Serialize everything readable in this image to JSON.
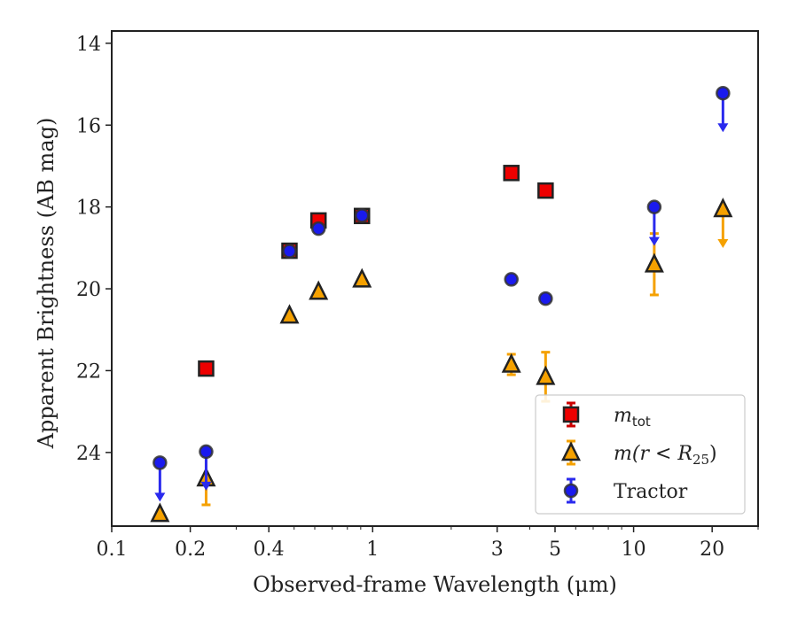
{
  "chart_data": {
    "type": "scatter",
    "xlabel": "Observed-frame Wavelength (μm)",
    "ylabel": "Apparent Brightness (AB mag)",
    "x_scale": "log",
    "xlim": [
      0.1,
      30
    ],
    "ylim": [
      25.8,
      13.7
    ],
    "y_inverted": true,
    "grid": false,
    "legend_position": "lower-right",
    "x_ticks": [
      {
        "value": 0.1,
        "label": "0.1"
      },
      {
        "value": 0.2,
        "label": "0.2"
      },
      {
        "value": 0.4,
        "label": "0.4"
      },
      {
        "value": 1,
        "label": "1"
      },
      {
        "value": 3,
        "label": "3"
      },
      {
        "value": 5,
        "label": "5"
      },
      {
        "value": 10,
        "label": "10"
      },
      {
        "value": 20,
        "label": "20"
      }
    ],
    "y_ticks": [
      {
        "value": 14,
        "label": "14"
      },
      {
        "value": 16,
        "label": "16"
      },
      {
        "value": 18,
        "label": "18"
      },
      {
        "value": 20,
        "label": "20"
      },
      {
        "value": 22,
        "label": "22"
      },
      {
        "value": 24,
        "label": "24"
      }
    ],
    "series": [
      {
        "name": "m_tot",
        "marker": "square",
        "color": "#ee0000",
        "err_color": "#cc0000",
        "points": [
          {
            "x": 0.23,
            "y": 21.95
          },
          {
            "x": 0.48,
            "y": 19.07
          },
          {
            "x": 0.62,
            "y": 18.33
          },
          {
            "x": 0.91,
            "y": 18.22
          },
          {
            "x": 3.4,
            "y": 17.17
          },
          {
            "x": 4.6,
            "y": 17.6
          }
        ]
      },
      {
        "name": "m(r<R25)",
        "marker": "triangle",
        "color": "#f5a100",
        "err_color": "#f5a100",
        "points": [
          {
            "x": 0.153,
            "y": 25.5
          },
          {
            "x": 0.23,
            "y": 24.63,
            "err": 0.65
          },
          {
            "x": 0.48,
            "y": 20.65
          },
          {
            "x": 0.62,
            "y": 20.07
          },
          {
            "x": 0.91,
            "y": 19.77
          },
          {
            "x": 3.4,
            "y": 21.85,
            "err": 0.25
          },
          {
            "x": 4.6,
            "y": 22.15,
            "err": 0.6
          },
          {
            "x": 12.0,
            "y": 19.4,
            "err": 0.75
          },
          {
            "x": 22.0,
            "y": 18.05,
            "upper_limit": true
          }
        ]
      },
      {
        "name": "Tractor",
        "marker": "circle",
        "color": "#1a1aee",
        "err_color": "#2a2aee",
        "points": [
          {
            "x": 0.153,
            "y": 24.25,
            "upper_limit": true
          },
          {
            "x": 0.23,
            "y": 23.98,
            "upper_limit": true
          },
          {
            "x": 0.48,
            "y": 19.08
          },
          {
            "x": 0.62,
            "y": 18.53
          },
          {
            "x": 0.91,
            "y": 18.21
          },
          {
            "x": 3.4,
            "y": 19.77
          },
          {
            "x": 4.6,
            "y": 20.24
          },
          {
            "x": 12.0,
            "y": 18.0,
            "upper_limit": true
          },
          {
            "x": 22.0,
            "y": 15.22,
            "upper_limit": true
          }
        ]
      }
    ]
  },
  "legend": {
    "items": [
      {
        "key": "m_tot",
        "main": "m",
        "sub": "tot",
        "marker": "square"
      },
      {
        "key": "m_r25",
        "prefix": "m(r < R",
        "sub": "25",
        "suffix": ")",
        "marker": "triangle"
      },
      {
        "key": "tractor",
        "text": "Tractor",
        "marker": "circle"
      }
    ]
  }
}
